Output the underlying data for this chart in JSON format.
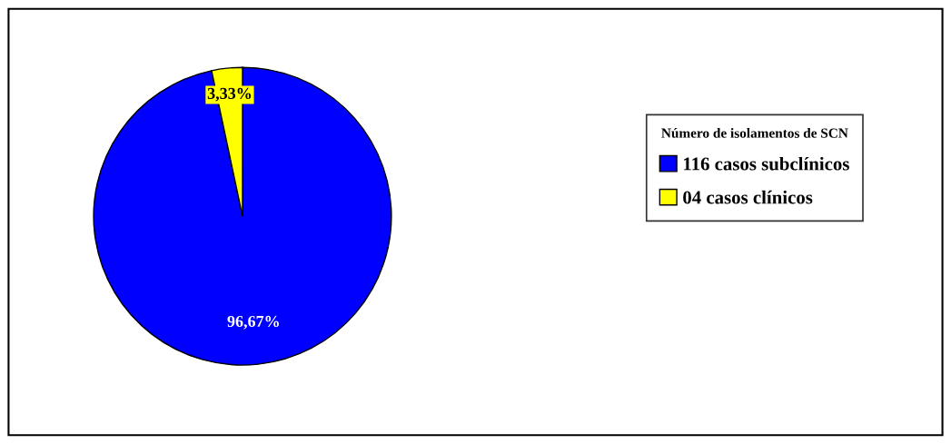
{
  "chart_data": {
    "type": "pie",
    "categories": [
      "116 casos subclínicos",
      "04 casos clínicos"
    ],
    "values": [
      96.67,
      3.33
    ],
    "colors": [
      "#0000ff",
      "#ffff00"
    ],
    "value_labels": [
      "96,67%",
      "3,33%"
    ],
    "legend_title": "Número de isolamentos de SCN",
    "legend": "right"
  }
}
